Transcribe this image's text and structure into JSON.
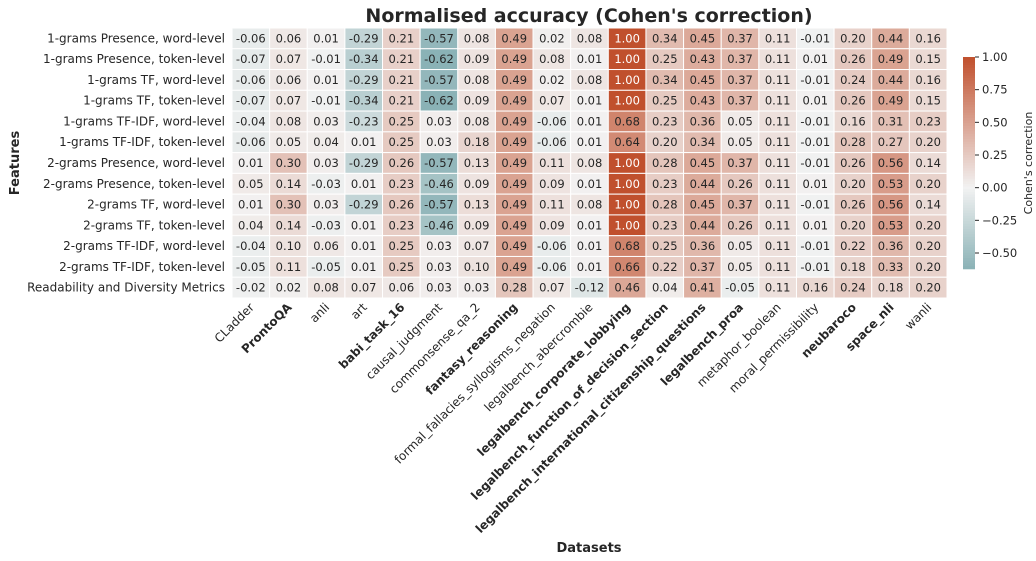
{
  "chart_data": {
    "type": "heatmap",
    "title": "Normalised accuracy (Cohen's correction)",
    "xlabel": "Datasets",
    "ylabel": "Features",
    "colorbar_label": "Cohen's correction",
    "x_categories": [
      "CLadder",
      "ProntoQA",
      "anli",
      "art",
      "babi_task_16",
      "causal_judgment",
      "commonsense_qa_2",
      "fantasy_reasoning",
      "formal_fallacies_syllogisms_negation",
      "legalbench_abercrombie",
      "legalbench_corporate_lobbying",
      "legalbench_function_of_decision_section",
      "legalbench_international_citizenship_questions",
      "legalbench_proa",
      "metaphor_boolean",
      "moral_permissibility",
      "neubaroco",
      "space_nli",
      "wanli"
    ],
    "bold_columns": [
      1,
      4,
      7,
      10,
      11,
      12,
      13,
      16,
      17
    ],
    "y_categories": [
      "1-grams Presence, word-level",
      "1-grams Presence, token-level",
      "1-grams TF, word-level",
      "1-grams TF, token-level",
      "1-grams TF-IDF, word-level",
      "1-grams TF-IDF, token-level",
      "2-grams Presence, word-level",
      "2-grams Presence, token-level",
      "2-grams TF, word-level",
      "2-grams TF, token-level",
      "2-grams TF-IDF, word-level",
      "2-grams TF-IDF, token-level",
      "Readability and Diversity Metrics"
    ],
    "values": [
      [
        -0.06,
        0.06,
        0.01,
        -0.29,
        0.21,
        -0.57,
        0.08,
        0.49,
        0.02,
        0.08,
        1.0,
        0.34,
        0.45,
        0.37,
        0.11,
        -0.01,
        0.2,
        0.44,
        0.16
      ],
      [
        -0.07,
        0.07,
        -0.01,
        -0.34,
        0.21,
        -0.62,
        0.09,
        0.49,
        0.08,
        0.01,
        1.0,
        0.25,
        0.43,
        0.37,
        0.11,
        0.01,
        0.26,
        0.49,
        0.15
      ],
      [
        -0.06,
        0.06,
        0.01,
        -0.29,
        0.21,
        -0.57,
        0.08,
        0.49,
        0.02,
        0.08,
        1.0,
        0.34,
        0.45,
        0.37,
        0.11,
        -0.01,
        0.24,
        0.44,
        0.16
      ],
      [
        -0.07,
        0.07,
        -0.01,
        -0.34,
        0.21,
        -0.62,
        0.09,
        0.49,
        0.07,
        0.01,
        1.0,
        0.25,
        0.43,
        0.37,
        0.11,
        0.01,
        0.26,
        0.49,
        0.15
      ],
      [
        -0.04,
        0.08,
        0.03,
        -0.23,
        0.25,
        0.03,
        0.08,
        0.49,
        -0.06,
        0.01,
        0.68,
        0.23,
        0.36,
        0.05,
        0.11,
        -0.01,
        0.16,
        0.31,
        0.23
      ],
      [
        -0.06,
        0.05,
        0.04,
        0.01,
        0.25,
        0.03,
        0.18,
        0.49,
        -0.06,
        0.01,
        0.64,
        0.2,
        0.34,
        0.05,
        0.11,
        -0.01,
        0.28,
        0.27,
        0.2
      ],
      [
        0.01,
        0.3,
        0.03,
        -0.29,
        0.26,
        -0.57,
        0.13,
        0.49,
        0.11,
        0.08,
        1.0,
        0.28,
        0.45,
        0.37,
        0.11,
        -0.01,
        0.26,
        0.56,
        0.14
      ],
      [
        0.05,
        0.14,
        -0.03,
        0.01,
        0.23,
        -0.46,
        0.09,
        0.49,
        0.09,
        0.01,
        1.0,
        0.23,
        0.44,
        0.26,
        0.11,
        0.01,
        0.2,
        0.53,
        0.2
      ],
      [
        0.01,
        0.3,
        0.03,
        -0.29,
        0.26,
        -0.57,
        0.13,
        0.49,
        0.11,
        0.08,
        1.0,
        0.28,
        0.45,
        0.37,
        0.11,
        -0.01,
        0.26,
        0.56,
        0.14
      ],
      [
        0.04,
        0.14,
        -0.03,
        0.01,
        0.23,
        -0.46,
        0.09,
        0.49,
        0.09,
        0.01,
        1.0,
        0.23,
        0.44,
        0.26,
        0.11,
        0.01,
        0.2,
        0.53,
        0.2
      ],
      [
        -0.04,
        0.1,
        0.06,
        0.01,
        0.25,
        0.03,
        0.07,
        0.49,
        -0.06,
        0.01,
        0.68,
        0.25,
        0.36,
        0.05,
        0.11,
        -0.01,
        0.22,
        0.36,
        0.2
      ],
      [
        -0.05,
        0.11,
        -0.05,
        0.01,
        0.25,
        0.03,
        0.1,
        0.49,
        -0.06,
        0.01,
        0.66,
        0.22,
        0.37,
        0.05,
        0.11,
        -0.01,
        0.18,
        0.33,
        0.2
      ],
      [
        -0.02,
        0.02,
        0.08,
        0.07,
        0.06,
        0.03,
        0.03,
        0.28,
        0.07,
        -0.12,
        0.46,
        0.04,
        0.41,
        -0.05,
        0.11,
        0.16,
        0.24,
        0.18,
        0.2
      ]
    ],
    "value_labels": [
      [
        "-0.06",
        "0.06",
        "0.01",
        "-0.29",
        "0.21",
        "-0.57",
        "0.08",
        "0.49",
        "0.02",
        "0.08",
        "1.00",
        "0.34",
        "0.45",
        "0.37",
        "0.11",
        "-0.01",
        "0.20",
        "0.44",
        "0.16"
      ],
      [
        "-0.07",
        "0.07",
        "-0.01",
        "-0.34",
        "0.21",
        "-0.62",
        "0.09",
        "0.49",
        "0.08",
        "0.01",
        "1.00",
        "0.25",
        "0.43",
        "0.37",
        "0.11",
        "0.01",
        "0.26",
        "0.49",
        "0.15"
      ],
      [
        "-0.06",
        "0.06",
        "0.01",
        "-0.29",
        "0.21",
        "-0.57",
        "0.08",
        "0.49",
        "0.02",
        "0.08",
        "1.00",
        "0.34",
        "0.45",
        "0.37",
        "0.11",
        "-0.01",
        "0.24",
        "0.44",
        "0.16"
      ],
      [
        "-0.07",
        "0.07",
        "-0.01",
        "-0.34",
        "0.21",
        "-0.62",
        "0.09",
        "0.49",
        "0.07",
        "0.01",
        "1.00",
        "0.25",
        "0.43",
        "0.37",
        "0.11",
        "0.01",
        "0.26",
        "0.49",
        "0.15"
      ],
      [
        "-0.04",
        "0.08",
        "0.03",
        "-0.23",
        "0.25",
        "0.03",
        "0.08",
        "0.49",
        "-0.06",
        "0.01",
        "0.68",
        "0.23",
        "0.36",
        "0.05",
        "0.11",
        "-0.01",
        "0.16",
        "0.31",
        "0.23"
      ],
      [
        "-0.06",
        "0.05",
        "0.04",
        "0.01",
        "0.25",
        "0.03",
        "0.18",
        "0.49",
        "-0.06",
        "0.01",
        "0.64",
        "0.20",
        "0.34",
        "0.05",
        "0.11",
        "-0.01",
        "0.28",
        "0.27",
        "0.20"
      ],
      [
        "0.01",
        "0.30",
        "0.03",
        "-0.29",
        "0.26",
        "-0.57",
        "0.13",
        "0.49",
        "0.11",
        "0.08",
        "1.00",
        "0.28",
        "0.45",
        "0.37",
        "0.11",
        "-0.01",
        "0.26",
        "0.56",
        "0.14"
      ],
      [
        "0.05",
        "0.14",
        "-0.03",
        "0.01",
        "0.23",
        "-0.46",
        "0.09",
        "0.49",
        "0.09",
        "0.01",
        "1.00",
        "0.23",
        "0.44",
        "0.26",
        "0.11",
        "0.01",
        "0.20",
        "0.53",
        "0.20"
      ],
      [
        "0.01",
        "0.30",
        "0.03",
        "-0.29",
        "0.26",
        "-0.57",
        "0.13",
        "0.49",
        "0.11",
        "0.08",
        "1.00",
        "0.28",
        "0.45",
        "0.37",
        "0.11",
        "-0.01",
        "0.26",
        "0.56",
        "0.14"
      ],
      [
        "0.04",
        "0.14",
        "-0.03",
        "0.01",
        "0.23",
        "-0.46",
        "0.09",
        "0.49",
        "0.09",
        "0.01",
        "1.00",
        "0.23",
        "0.44",
        "0.26",
        "0.11",
        "0.01",
        "0.20",
        "0.53",
        "0.20"
      ],
      [
        "-0.04",
        "0.10",
        "0.06",
        "0.01",
        "0.25",
        "0.03",
        "0.07",
        "0.49",
        "-0.06",
        "0.01",
        "0.68",
        "0.25",
        "0.36",
        "0.05",
        "0.11",
        "-0.01",
        "0.22",
        "0.36",
        "0.20"
      ],
      [
        "-0.05",
        "0.11",
        "-0.05",
        "0.01",
        "0.25",
        "0.03",
        "0.10",
        "0.49",
        "-0.06",
        "0.01",
        "0.66",
        "0.22",
        "0.37",
        "0.05",
        "0.11",
        "-0.01",
        "0.18",
        "0.33",
        "0.20"
      ],
      [
        "-0.02",
        "0.02",
        "0.08",
        "0.07",
        "0.06",
        "0.03",
        "0.03",
        "0.28",
        "0.07",
        "-0.12",
        "0.46",
        "0.04",
        "0.41",
        "-0.05",
        "0.11",
        "0.16",
        "0.24",
        "0.18",
        "0.20"
      ]
    ],
    "colormap": {
      "negative": "#4b8b91",
      "center": "#f2f2f2",
      "positive": "#c0502d"
    },
    "clim": [
      -0.62,
      1.0
    ],
    "cbar_ticks": [
      {
        "value": 1.0,
        "label": "1.00"
      },
      {
        "value": 0.75,
        "label": "0.75"
      },
      {
        "value": 0.5,
        "label": "0.50"
      },
      {
        "value": 0.25,
        "label": "0.25"
      },
      {
        "value": 0,
        "label": "0.00"
      },
      {
        "value": -0.25,
        "label": "−0.25"
      },
      {
        "value": -0.5,
        "label": "−0.50"
      }
    ]
  }
}
